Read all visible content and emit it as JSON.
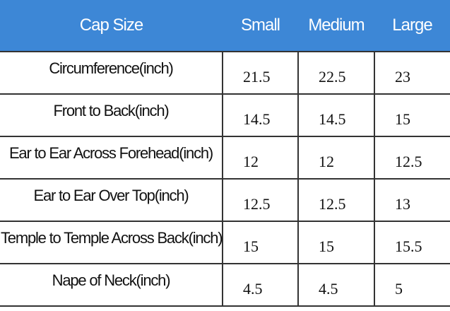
{
  "table": {
    "header": [
      "Cap Size",
      "Small",
      "Medium",
      "Large"
    ],
    "rows": [
      [
        "Circumference(inch)",
        "21.5",
        "22.5",
        "23"
      ],
      [
        "Front to Back(inch)",
        "14.5",
        "14.5",
        "15"
      ],
      [
        "Ear to Ear Across Forehead(inch)",
        "12",
        "12",
        "12.5"
      ],
      [
        "Ear to Ear Over Top(inch)",
        "12.5",
        "12.5",
        "13"
      ],
      [
        "Temple to Temple Across Back(inch)",
        "15",
        "15",
        "15.5"
      ],
      [
        "Nape of Neck(inch)",
        "4.5",
        "4.5",
        "5"
      ]
    ]
  }
}
